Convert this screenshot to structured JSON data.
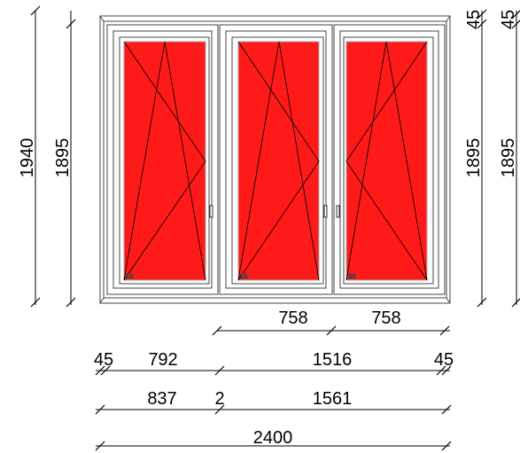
{
  "drawing": {
    "glass_color": "#ff1a1a",
    "frame_color": "#ffffff",
    "line_color": "#000000"
  },
  "panels": [
    {
      "label": "1A"
    },
    {
      "label": "1A"
    },
    {
      "label": "2A"
    }
  ],
  "dimensions": {
    "left_total_height": "1940",
    "left_inner_height": "1895",
    "right_inner_height_1": "1895",
    "right_inner_height_2": "1895",
    "top_right_1": "45",
    "top_right_2": "45",
    "sash_width_2": "758",
    "sash_width_3": "758",
    "row2": [
      "45",
      "792",
      "1516",
      "45"
    ],
    "row3": [
      "837",
      "2",
      "1561"
    ],
    "total_width": "2400"
  }
}
